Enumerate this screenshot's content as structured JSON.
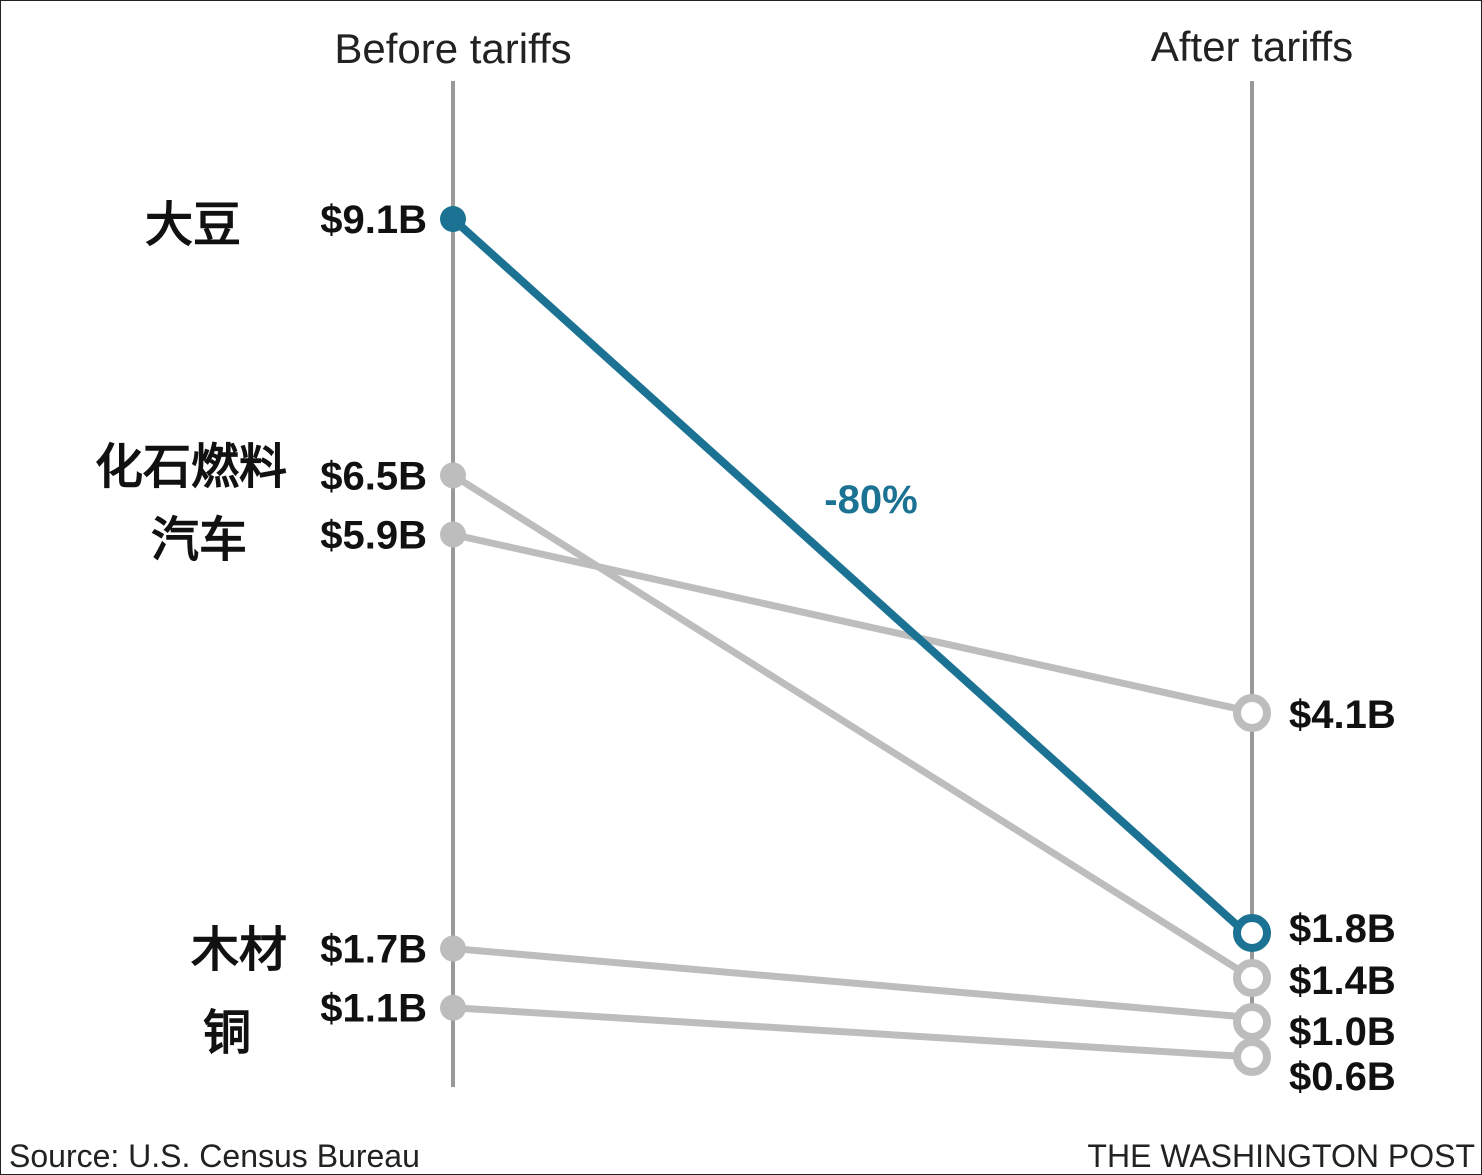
{
  "chart_data": {
    "type": "line",
    "chart_style": "slope",
    "columns": [
      "Before tariffs",
      "After tariffs"
    ],
    "unit": "billion USD",
    "series": [
      {
        "name": "大豆",
        "before": 9.1,
        "after": 1.8,
        "before_label": "$9.1B",
        "after_label": "$1.8B",
        "highlight": true,
        "change_label": "-80%"
      },
      {
        "name": "化石燃料",
        "before": 6.5,
        "after": 1.4,
        "before_label": "$6.5B",
        "after_label": "$1.4B",
        "highlight": false
      },
      {
        "name": "汽车",
        "before": 5.9,
        "after": 4.1,
        "before_label": "$5.9B",
        "after_label": "$4.1B",
        "highlight": false
      },
      {
        "name": "木材",
        "before": 1.7,
        "after": 1.0,
        "before_label": "$1.7B",
        "after_label": "$1.0B",
        "highlight": false
      },
      {
        "name": "铜",
        "before": 1.1,
        "after": 0.6,
        "before_label": "$1.1B",
        "after_label": "$0.6B",
        "highlight": false
      }
    ],
    "grid": false,
    "legend": "none"
  },
  "colors": {
    "highlight": "#1b7292",
    "muted": "#bdbdbd",
    "axis": "#999999",
    "text": "#111111"
  },
  "footer": {
    "source": "Source: U.S. Census Bureau",
    "credit": "THE WASHINGTON POST"
  }
}
